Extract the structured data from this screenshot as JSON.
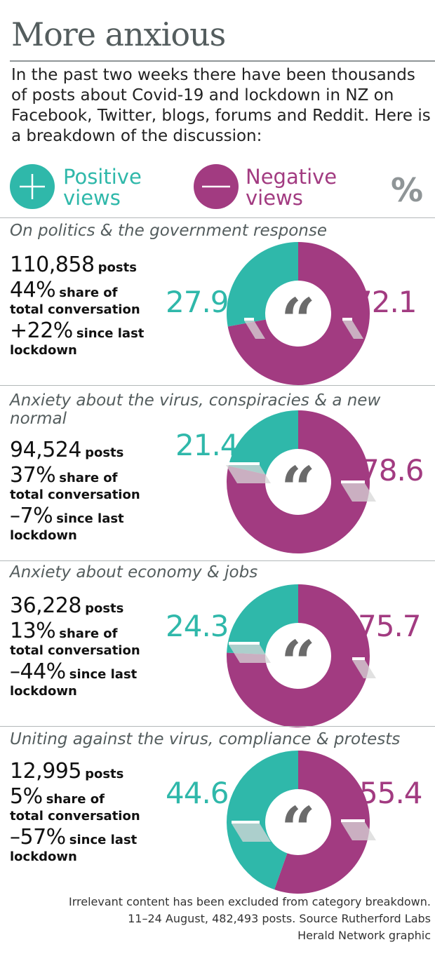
{
  "header": {
    "title": "More anxious",
    "intro": "In the past two weeks there have been thousands of posts about Covid-19 and lockdown in NZ on Facebook, Twitter, blogs, forums and Reddit. Here is a breakdown of the discussion:"
  },
  "legend": {
    "positive_line1": "Positive",
    "positive_line2": "views",
    "negative_line1": "Negative",
    "negative_line2": "views",
    "percent_symbol": "%",
    "positive_color": "#2fb8aa",
    "negative_color": "#a23b81"
  },
  "sections": [
    {
      "title": "On politics & the government response",
      "posts_value": "110,858",
      "posts_label": "posts",
      "share_value": "44%",
      "share_label": "share of",
      "share_label2": "total conversation",
      "change_value": "+22%",
      "change_label": "since last",
      "change_label2": "lockdown",
      "positive_text": "27.9",
      "negative_text": "72.1"
    },
    {
      "title": "Anxiety about the virus, conspiracies & a new normal",
      "posts_value": "94,524",
      "posts_label": "posts",
      "share_value": "37%",
      "share_label": "share of",
      "share_label2": "total conversation",
      "change_value": "–7%",
      "change_label": "since last",
      "change_label2": "lockdown",
      "positive_text": "21.4",
      "negative_text": "78.6"
    },
    {
      "title": "Anxiety about economy & jobs",
      "posts_value": "36,228",
      "posts_label": "posts",
      "share_value": "13%",
      "share_label": "share of",
      "share_label2": "total conversation",
      "change_value": "–44%",
      "change_label": "since last",
      "change_label2": "lockdown",
      "positive_text": "24.3",
      "negative_text": "75.7"
    },
    {
      "title": "Uniting against the virus, compliance & protests",
      "posts_value": "12,995",
      "posts_label": "posts",
      "share_value": "5%",
      "share_label": "share of",
      "share_label2": "total conversation",
      "change_value": "–57%",
      "change_label": "since last",
      "change_label2": "lockdown",
      "positive_text": "44.6",
      "negative_text": "55.4"
    }
  ],
  "footer": {
    "line1": "Irrelevant content has been excluded from category breakdown.",
    "line2": "11–24 August, 482,493 posts. Source  Rutherford Labs",
    "line3": "Herald Network graphic"
  },
  "chart_data": [
    {
      "type": "pie",
      "title": "On politics & the government response",
      "categories": [
        "Positive views",
        "Negative views"
      ],
      "values": [
        27.9,
        72.1
      ]
    },
    {
      "type": "pie",
      "title": "Anxiety about the virus, conspiracies & a new normal",
      "categories": [
        "Positive views",
        "Negative views"
      ],
      "values": [
        21.4,
        78.6
      ]
    },
    {
      "type": "pie",
      "title": "Anxiety about economy & jobs",
      "categories": [
        "Positive views",
        "Negative views"
      ],
      "values": [
        24.3,
        75.7
      ]
    },
    {
      "type": "pie",
      "title": "Uniting against the virus, compliance & protests",
      "categories": [
        "Positive views",
        "Negative views"
      ],
      "values": [
        44.6,
        55.4
      ]
    }
  ]
}
